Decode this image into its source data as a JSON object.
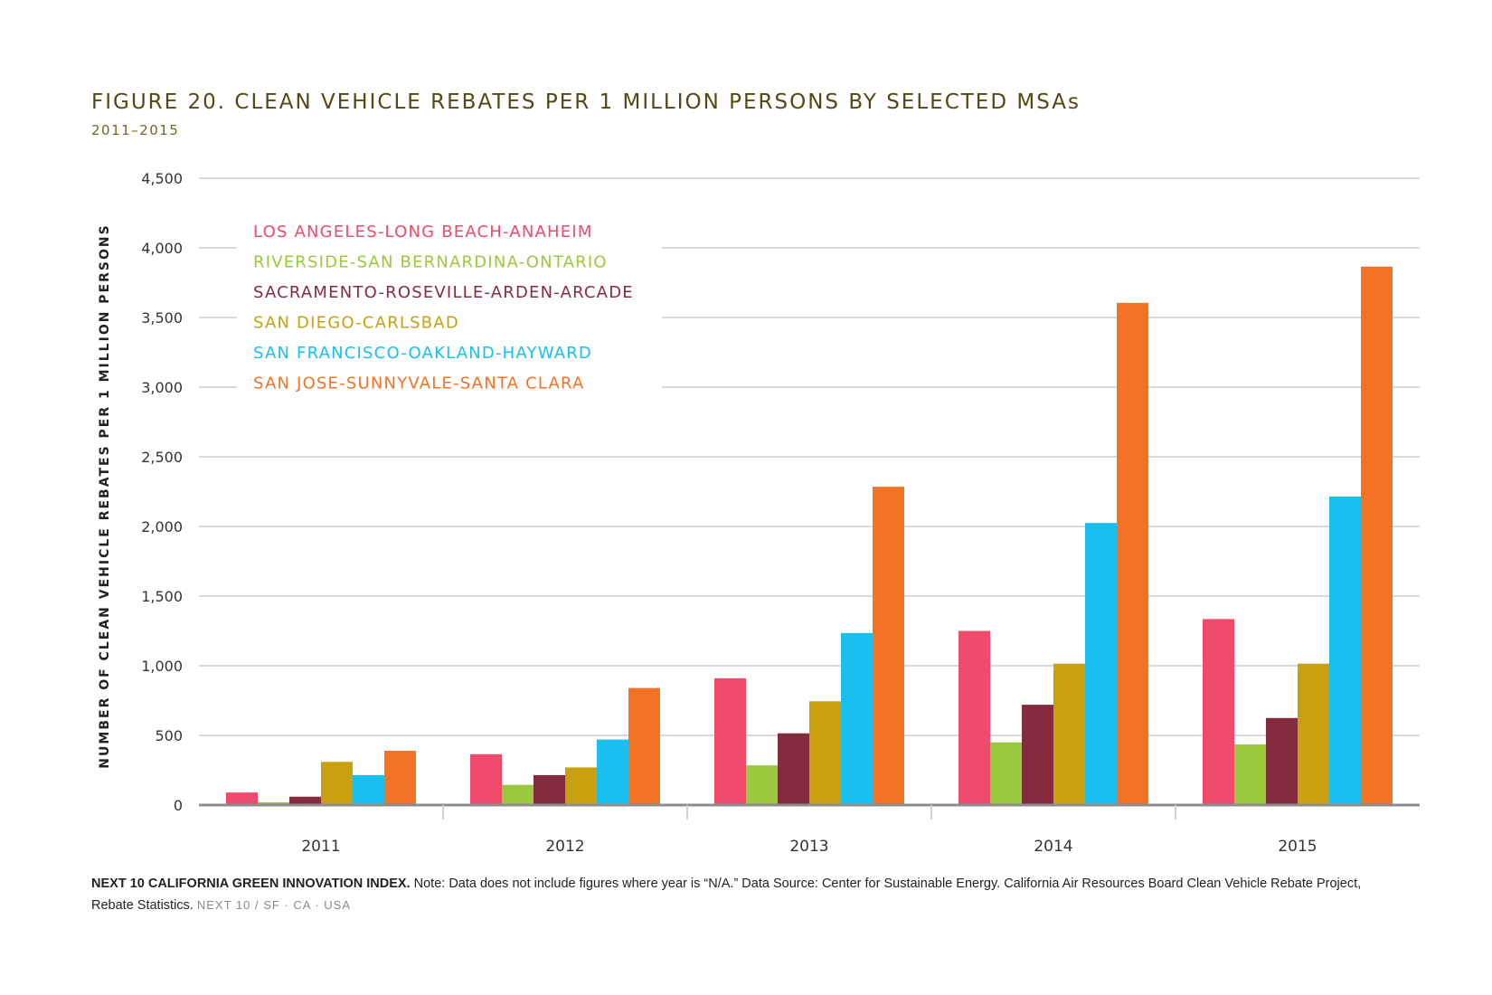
{
  "title": "FIGURE 20. CLEAN VEHICLE REBATES PER 1 MILLION PERSONS BY SELECTED MSAs",
  "subtitle": "2011–2015",
  "chart_data": {
    "type": "bar",
    "categories": [
      "2011",
      "2012",
      "2013",
      "2014",
      "2015"
    ],
    "ylabel": "NUMBER OF CLEAN VEHICLE REBATES PER 1 MILLION PERSONS",
    "xlabel": "",
    "ylim": [
      0,
      4500
    ],
    "yticks": [
      0,
      500,
      1000,
      1500,
      2000,
      2500,
      3000,
      3500,
      4000,
      4500
    ],
    "grid": true,
    "legend_position": "top-left",
    "series": [
      {
        "name": "LOS ANGELES-LONG BEACH-ANAHEIM",
        "color": "#ee4b6d",
        "values": [
          90,
          365,
          910,
          1250,
          1335
        ]
      },
      {
        "name": "RIVERSIDE-SAN BERNARDINA-ONTARIO",
        "color": "#9ac93d",
        "values": [
          20,
          145,
          285,
          450,
          435
        ]
      },
      {
        "name": "SACRAMENTO-ROSEVILLE-ARDEN-ARCADE",
        "color": "#842c3d",
        "values": [
          60,
          215,
          515,
          720,
          625
        ]
      },
      {
        "name": "SAN DIEGO-CARLSBAD",
        "color": "#c9a010",
        "values": [
          310,
          270,
          745,
          1015,
          1015
        ]
      },
      {
        "name": "SAN FRANCISCO-OAKLAND-HAYWARD",
        "color": "#19bfef",
        "values": [
          215,
          470,
          1235,
          2025,
          2215
        ]
      },
      {
        "name": "SAN JOSE-SUNNYVALE-SANTA CLARA",
        "color": "#f47224",
        "values": [
          390,
          840,
          2285,
          3605,
          3865
        ]
      }
    ]
  },
  "note": {
    "bold": "NEXT 10 CALIFORNIA GREEN INNOVATION INDEX.",
    "text": " Note: Data does not include figures where year is “N/A.” Data Source: Center for Sustainable Energy. California Air Resources Board Clean Vehicle Rebate Project, Rebate Statistics. ",
    "brand": "NEXT 10  /  SF · CA · USA"
  }
}
